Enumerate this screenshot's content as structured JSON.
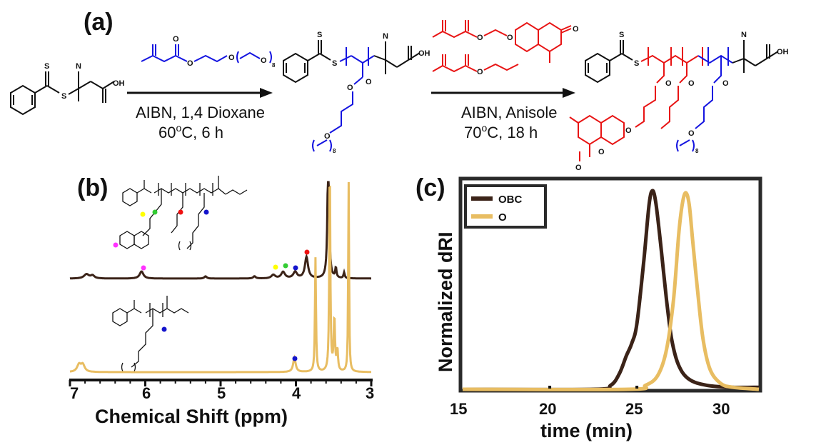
{
  "panel_a": {
    "label": "(a)",
    "step1": {
      "line1": "AIBN, 1,4 Dioxane",
      "line2_prefix": "60",
      "line2_sup": "o",
      "line2_suffix": "C, 6 h"
    },
    "step2": {
      "line1": "AIBN, Anisole",
      "line2_prefix": "70",
      "line2_sup": "o",
      "line2_suffix": "C, 18 h"
    },
    "repeat_index": "8"
  },
  "panel_b": {
    "label": "(b)",
    "xlabel": "Chemical Shift (ppm)",
    "ticks": [
      "7",
      "6",
      "5",
      "4",
      "3"
    ],
    "repeat_index": "8",
    "colors": {
      "obc": "#3b2318",
      "o": "#e8bd62",
      "magenta": "#ff33ff",
      "yellow": "#ffff00",
      "green": "#33cc33",
      "red": "#ee1111",
      "blue": "#1414cc"
    }
  },
  "panel_c": {
    "label": "(c)",
    "xlabel": "time (min)",
    "ylabel": "Normalized dRI",
    "ticks": [
      "15",
      "20",
      "25",
      "30"
    ],
    "legend": [
      "OBC",
      "O"
    ]
  },
  "chart_data": {
    "type": "line",
    "xlabel": "time (min)",
    "ylabel": "Normalized dRI",
    "xlim": [
      15,
      32
    ],
    "ylim": [
      0,
      1.05
    ],
    "grid": false,
    "legend_position": "top-left",
    "series": [
      {
        "name": "OBC",
        "color": "#3b2318",
        "peak_x": 25.9,
        "peak_y": 1.0,
        "shoulder_x": 24.6,
        "shoulder_y": 0.22,
        "x": [
          15,
          22.5,
          23.5,
          24.0,
          24.4,
          24.7,
          25.0,
          25.4,
          25.7,
          25.9,
          26.1,
          26.4,
          26.7,
          27.0,
          27.4,
          28.0,
          29.0,
          30.5,
          32
        ],
        "y": [
          0,
          0.0,
          0.02,
          0.08,
          0.17,
          0.23,
          0.33,
          0.65,
          0.93,
          1.0,
          0.93,
          0.7,
          0.45,
          0.25,
          0.12,
          0.05,
          0.02,
          0.01,
          0.01
        ]
      },
      {
        "name": "O",
        "color": "#e8bd62",
        "peak_x": 27.8,
        "peak_y": 0.99,
        "x": [
          15,
          24.5,
          25.5,
          26.2,
          26.7,
          27.1,
          27.4,
          27.6,
          27.8,
          28.0,
          28.2,
          28.5,
          28.8,
          29.2,
          29.8,
          30.5,
          32
        ],
        "y": [
          0,
          0.0,
          0.02,
          0.07,
          0.2,
          0.45,
          0.78,
          0.93,
          0.99,
          0.93,
          0.75,
          0.48,
          0.25,
          0.1,
          0.03,
          0.01,
          0.0
        ]
      }
    ]
  }
}
